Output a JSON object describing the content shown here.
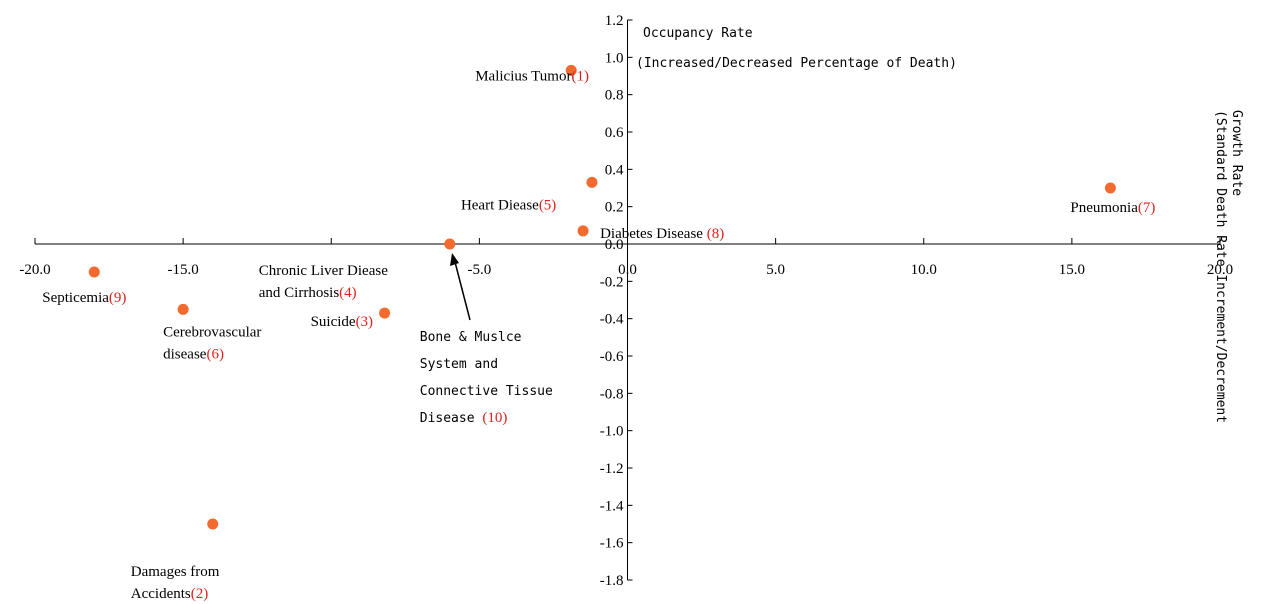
{
  "chart_data": {
    "type": "scatter",
    "x_axis": {
      "label": "Growth Rate (Standard Death Rate Increment/Decrement",
      "label_line1": "Growth Rate",
      "label_line2": "(Standard Death Rate Increment/Decrement",
      "range": [
        -20,
        20
      ],
      "ticks": [
        -20,
        -15,
        -10,
        -5,
        0,
        5,
        10,
        15,
        20
      ],
      "tick_labels": [
        "-20.0",
        "-15.0",
        "",
        "-5.0",
        "0.0",
        "5.0",
        "10.0",
        "15.0",
        "20.0"
      ]
    },
    "y_axis": {
      "label": "Occupancy Rate (Increased/Decreased Percentage of Death)",
      "label_line1": "Occupancy Rate",
      "label_line2": "(Increased/Decreased Percentage of Death)",
      "range": [
        -1.8,
        1.2
      ],
      "ticks": [
        1.2,
        1.0,
        0.8,
        0.6,
        0.4,
        0.2,
        0.0,
        -0.2,
        -0.4,
        -0.6,
        -0.8,
        -1.0,
        -1.2,
        -1.4,
        -1.6,
        -1.8
      ],
      "tick_labels": [
        "1.2",
        "1.0",
        "0.8",
        "0.6",
        "0.4",
        "0.2",
        "0.0",
        "-0.2",
        "-0.4",
        "-0.6",
        "-0.8",
        "-1.0",
        "-1.2",
        "-1.4",
        "-1.6",
        "-1.8"
      ]
    },
    "marker_color": "#f26a2e",
    "number_color": "#e0201c",
    "points": [
      {
        "id": "malicious-tumor",
        "x": -1.9,
        "y": 0.93,
        "lines": [
          "Malicius Tumor"
        ],
        "number": "(1)"
      },
      {
        "id": "accidents",
        "x": -14.0,
        "y": -1.5,
        "lines": [
          "Damages from",
          "Accidents"
        ],
        "number": "(2)"
      },
      {
        "id": "suicide",
        "x": -8.2,
        "y": -0.37,
        "lines": [
          "Suicide"
        ],
        "number": "(3)"
      },
      {
        "id": "chronic-liver",
        "x": -6.0,
        "y": 0.0,
        "lines": [
          "Chronic Liver Diease",
          "and Cirrhosis"
        ],
        "number": "(4)"
      },
      {
        "id": "heart-disease",
        "x": -1.2,
        "y": 0.33,
        "lines": [
          "Heart Diease"
        ],
        "number": "(5)"
      },
      {
        "id": "cerebrovascular",
        "x": -15.0,
        "y": -0.35,
        "lines": [
          "Cerebrovascular",
          "disease"
        ],
        "number": "(6)"
      },
      {
        "id": "pneumonia",
        "x": 16.3,
        "y": 0.3,
        "lines": [
          "Pneumonia"
        ],
        "number": "(7)"
      },
      {
        "id": "diabetes",
        "x": -1.5,
        "y": 0.07,
        "lines": [
          "Diabetes Disease "
        ],
        "number": "(8)"
      },
      {
        "id": "septicemia",
        "x": -18.0,
        "y": -0.15,
        "lines": [
          "Septicemia"
        ],
        "number": "(9)"
      },
      {
        "id": "bone-muscle",
        "x": -6.0,
        "y": 0.0,
        "lines": [
          "Bone & Muslce",
          "System and",
          "Connective Tissue",
          "Disease "
        ],
        "number": "(10)"
      }
    ]
  }
}
